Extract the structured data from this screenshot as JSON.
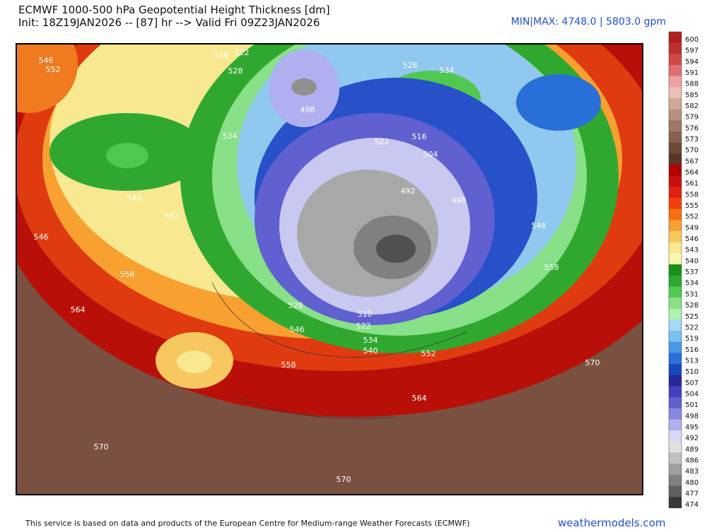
{
  "header": {
    "title": "ECMWF 1000-500 hPa Geopotential Height Thickness [dm]",
    "init": "Init: 18Z19JAN2026 -- [87] hr --> Valid Fri 09Z23JAN2026",
    "minmax": "MIN|MAX: 4748.0 | 5803.0 gpm"
  },
  "colorbar": {
    "levels": [
      600,
      597,
      594,
      591,
      588,
      585,
      582,
      579,
      576,
      573,
      570,
      567,
      564,
      561,
      558,
      555,
      552,
      549,
      546,
      543,
      540,
      537,
      534,
      531,
      528,
      525,
      522,
      519,
      516,
      513,
      510,
      507,
      504,
      501,
      498,
      495,
      492,
      489,
      486,
      483,
      480,
      477,
      474
    ],
    "colors": [
      "#b02020",
      "#c03030",
      "#d04848",
      "#e07070",
      "#f0a0a0",
      "#e8c0b8",
      "#d0a898",
      "#b89080",
      "#a07868",
      "#886050",
      "#6e4838",
      "#5a3428",
      "#b00000",
      "#c81010",
      "#e02010",
      "#f04010",
      "#f87010",
      "#f8a030",
      "#f8c860",
      "#f8e890",
      "#f8f8b0",
      "#189018",
      "#30a830",
      "#50c850",
      "#88e088",
      "#b0f0b0",
      "#a8d8f8",
      "#78c0f0",
      "#4898e8",
      "#2870d8",
      "#1848c0",
      "#282898",
      "#4040c0",
      "#6060d0",
      "#8888e0",
      "#b0b0f0",
      "#d8d8f8",
      "#e0e0e0",
      "#c0c0c0",
      "#a0a0a0",
      "#808080",
      "#606060",
      "#383838"
    ]
  },
  "map": {
    "contour_labels": [
      546,
      552,
      516,
      522,
      528,
      498,
      534,
      540,
      552,
      546,
      558,
      564,
      528,
      546,
      510,
      522,
      534,
      540,
      552,
      558,
      564,
      570,
      570,
      570,
      522,
      516,
      504,
      492,
      498,
      546,
      558,
      528,
      534
    ]
  },
  "footer": {
    "notice": "This service is based on data and products of the European Centre for Medium-range Weather Forecasts (ECMWF)",
    "brand": "weathermodels.com"
  }
}
